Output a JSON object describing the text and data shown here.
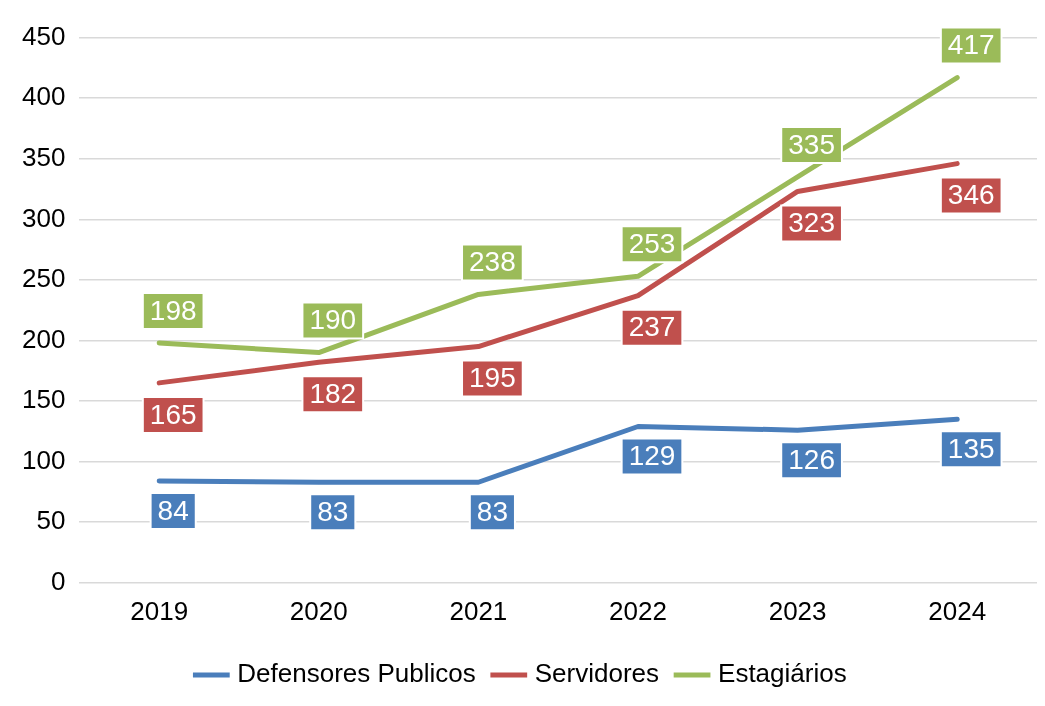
{
  "chart_data": {
    "type": "line",
    "categories": [
      "2019",
      "2020",
      "2021",
      "2022",
      "2023",
      "2024"
    ],
    "series": [
      {
        "name": "Defensores Publicos",
        "color": "#4a7ebb",
        "values": [
          84,
          83,
          83,
          129,
          126,
          135
        ]
      },
      {
        "name": "Servidores",
        "color": "#c0504d",
        "values": [
          165,
          182,
          195,
          237,
          323,
          346
        ]
      },
      {
        "name": "Estagiários",
        "color": "#9bbb59",
        "values": [
          198,
          190,
          238,
          253,
          335,
          417
        ]
      }
    ],
    "ylim": [
      0,
      450
    ],
    "yticks": [
      0,
      50,
      100,
      150,
      200,
      250,
      300,
      350,
      400,
      450
    ],
    "grid": "y",
    "legend": "bottom",
    "data_labels": true,
    "marker": "none",
    "line_style": "solid"
  }
}
